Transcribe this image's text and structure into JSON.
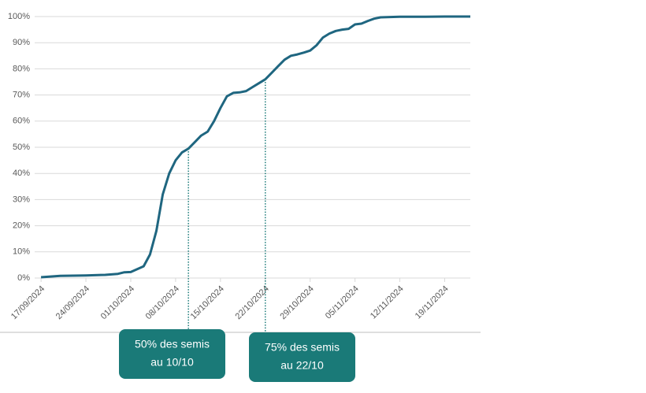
{
  "chart_data": {
    "type": "line",
    "x": [
      "2024-09-17",
      "2024-09-20",
      "2024-09-24",
      "2024-09-27",
      "2024-09-29",
      "2024-09-30",
      "2024-10-01",
      "2024-10-03",
      "2024-10-04",
      "2024-10-05",
      "2024-10-06",
      "2024-10-07",
      "2024-10-08",
      "2024-10-09",
      "2024-10-10",
      "2024-10-11",
      "2024-10-12",
      "2024-10-13",
      "2024-10-14",
      "2024-10-15",
      "2024-10-16",
      "2024-10-17",
      "2024-10-18",
      "2024-10-19",
      "2024-10-20",
      "2024-10-21",
      "2024-10-22",
      "2024-10-23",
      "2024-10-24",
      "2024-10-25",
      "2024-10-26",
      "2024-10-27",
      "2024-10-28",
      "2024-10-29",
      "2024-10-30",
      "2024-10-31",
      "2024-11-01",
      "2024-11-02",
      "2024-11-03",
      "2024-11-04",
      "2024-11-05",
      "2024-11-06",
      "2024-11-07",
      "2024-11-08",
      "2024-11-09",
      "2024-11-10",
      "2024-11-12",
      "2024-11-16",
      "2024-11-19",
      "2024-11-23"
    ],
    "series": [
      {
        "color": "#1f6680",
        "values": [
          0.3,
          0.8,
          1.0,
          1.2,
          1.6,
          2.2,
          2.3,
          4.5,
          9,
          18,
          32,
          40,
          45,
          48,
          49.5,
          52,
          54.5,
          56,
          60,
          65,
          69.5,
          70.8,
          71,
          71.5,
          73,
          74.5,
          76,
          78.5,
          81,
          83.5,
          85,
          85.5,
          86.2,
          87,
          89,
          92,
          93.5,
          94.5,
          95,
          95.3,
          97,
          97.3,
          98.3,
          99.2,
          99.7,
          99.8,
          99.9,
          99.9,
          100,
          100
        ]
      }
    ],
    "xlim": [
      "2024-09-16",
      "2024-11-23"
    ],
    "xticks": [
      {
        "value": "2024-09-17",
        "label": "17/09/2024"
      },
      {
        "value": "2024-09-24",
        "label": "24/09/2024"
      },
      {
        "value": "2024-10-01",
        "label": "01/10/2024"
      },
      {
        "value": "2024-10-08",
        "label": "08/10/2024"
      },
      {
        "value": "2024-10-15",
        "label": "15/10/2024"
      },
      {
        "value": "2024-10-22",
        "label": "22/10/2024"
      },
      {
        "value": "2024-10-29",
        "label": "29/10/2024"
      },
      {
        "value": "2024-11-05",
        "label": "05/11/2024"
      },
      {
        "value": "2024-11-12",
        "label": "12/11/2024"
      },
      {
        "value": "2024-11-19",
        "label": "19/11/2024"
      }
    ],
    "ylim": [
      0,
      100
    ],
    "yticks": [
      {
        "value": 0,
        "label": "0%"
      },
      {
        "value": 10,
        "label": "10%"
      },
      {
        "value": 20,
        "label": "20%"
      },
      {
        "value": 30,
        "label": "30%"
      },
      {
        "value": 40,
        "label": "40%"
      },
      {
        "value": 50,
        "label": "50%"
      },
      {
        "value": 60,
        "label": "60%"
      },
      {
        "value": 70,
        "label": "70%"
      },
      {
        "value": 80,
        "label": "80%"
      },
      {
        "value": 90,
        "label": "90%"
      },
      {
        "value": 100,
        "label": "100%"
      }
    ],
    "grid": true,
    "annotations": [
      {
        "x": "2024-10-10",
        "y": 49.5,
        "color": "#1a7a78",
        "lines": [
          "50% des semis",
          "au 10/10"
        ]
      },
      {
        "x": "2024-10-22",
        "y": 76,
        "color": "#1a7a78",
        "lines": [
          "75% des semis",
          "au 22/10"
        ]
      }
    ]
  }
}
